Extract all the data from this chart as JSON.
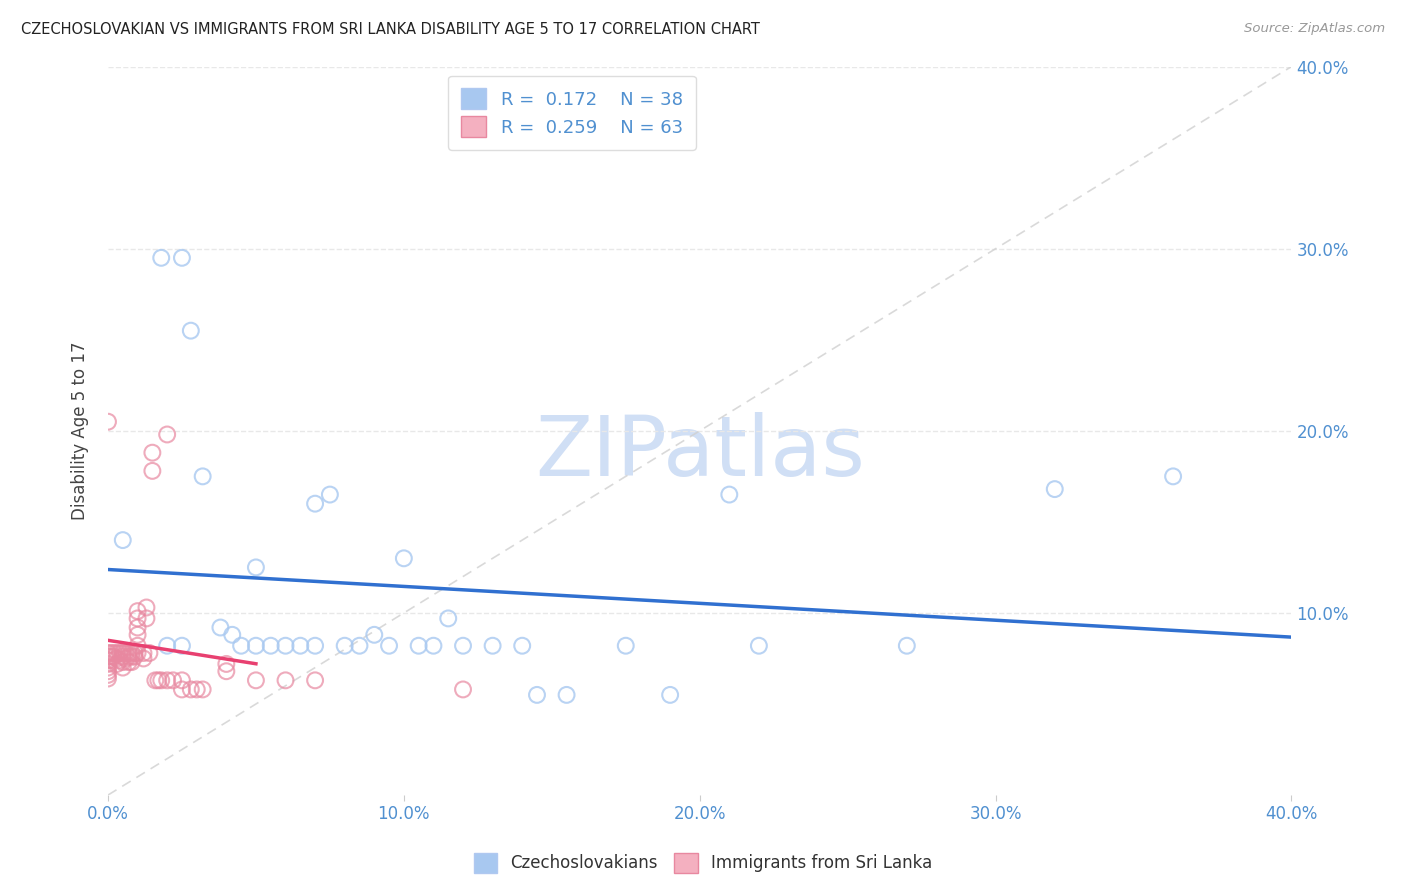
{
  "title": "CZECHOSLOVAKIAN VS IMMIGRANTS FROM SRI LANKA DISABILITY AGE 5 TO 17 CORRELATION CHART",
  "source": "Source: ZipAtlas.com",
  "ylabel": "Disability Age 5 to 17",
  "xlim": [
    0.0,
    0.4
  ],
  "ylim": [
    0.0,
    0.4
  ],
  "xtick_vals": [
    0.0,
    0.1,
    0.2,
    0.3,
    0.4
  ],
  "ytick_vals": [
    0.1,
    0.2,
    0.3,
    0.4
  ],
  "blue_color": "#A8C8F0",
  "blue_edge_color": "#A8C8F0",
  "pink_color": "#F4B0C0",
  "pink_edge_color": "#E888A0",
  "blue_line_color": "#3070D0",
  "pink_line_color": "#E84070",
  "diag_color": "#D0D0D0",
  "tick_color": "#5090D0",
  "legend_R1_val": "0.172",
  "legend_N1_val": "38",
  "legend_R2_val": "0.259",
  "legend_N2_val": "63",
  "blue_scatter_x": [
    0.005,
    0.018,
    0.025,
    0.028,
    0.032,
    0.038,
    0.042,
    0.045,
    0.05,
    0.05,
    0.055,
    0.06,
    0.065,
    0.07,
    0.075,
    0.08,
    0.085,
    0.09,
    0.095,
    0.1,
    0.105,
    0.11,
    0.115,
    0.12,
    0.13,
    0.14,
    0.155,
    0.175,
    0.19,
    0.21,
    0.22,
    0.27,
    0.32,
    0.36,
    0.02,
    0.025,
    0.07,
    0.145
  ],
  "blue_scatter_y": [
    0.14,
    0.295,
    0.295,
    0.255,
    0.175,
    0.092,
    0.088,
    0.082,
    0.082,
    0.125,
    0.082,
    0.082,
    0.082,
    0.16,
    0.165,
    0.082,
    0.082,
    0.088,
    0.082,
    0.13,
    0.082,
    0.082,
    0.097,
    0.082,
    0.082,
    0.082,
    0.055,
    0.082,
    0.055,
    0.165,
    0.082,
    0.082,
    0.168,
    0.175,
    0.082,
    0.082,
    0.082,
    0.055
  ],
  "pink_scatter_x": [
    0.0,
    0.0,
    0.0,
    0.0,
    0.0,
    0.0,
    0.001,
    0.001,
    0.001,
    0.002,
    0.002,
    0.003,
    0.003,
    0.003,
    0.004,
    0.004,
    0.005,
    0.005,
    0.005,
    0.005,
    0.006,
    0.006,
    0.007,
    0.007,
    0.007,
    0.008,
    0.008,
    0.008,
    0.009,
    0.009,
    0.01,
    0.01,
    0.01,
    0.01,
    0.01,
    0.01,
    0.012,
    0.012,
    0.013,
    0.013,
    0.014,
    0.015,
    0.015,
    0.016,
    0.017,
    0.018,
    0.02,
    0.02,
    0.022,
    0.025,
    0.025,
    0.028,
    0.03,
    0.032,
    0.04,
    0.04,
    0.05,
    0.06,
    0.07,
    0.12,
    0.0,
    0.0,
    0.0
  ],
  "pink_scatter_y": [
    0.078,
    0.076,
    0.074,
    0.072,
    0.07,
    0.068,
    0.078,
    0.076,
    0.074,
    0.078,
    0.076,
    0.078,
    0.075,
    0.072,
    0.078,
    0.074,
    0.078,
    0.076,
    0.073,
    0.07,
    0.078,
    0.075,
    0.078,
    0.076,
    0.073,
    0.078,
    0.076,
    0.073,
    0.078,
    0.076,
    0.101,
    0.097,
    0.092,
    0.088,
    0.082,
    0.078,
    0.078,
    0.075,
    0.103,
    0.097,
    0.078,
    0.188,
    0.178,
    0.063,
    0.063,
    0.063,
    0.198,
    0.063,
    0.063,
    0.063,
    0.058,
    0.058,
    0.058,
    0.058,
    0.072,
    0.068,
    0.063,
    0.063,
    0.063,
    0.058,
    0.205,
    0.066,
    0.064
  ],
  "watermark_text": "ZIPatlas",
  "watermark_color": "#D0DFF5",
  "background_color": "#FFFFFF",
  "grid_color": "#E8E8E8"
}
